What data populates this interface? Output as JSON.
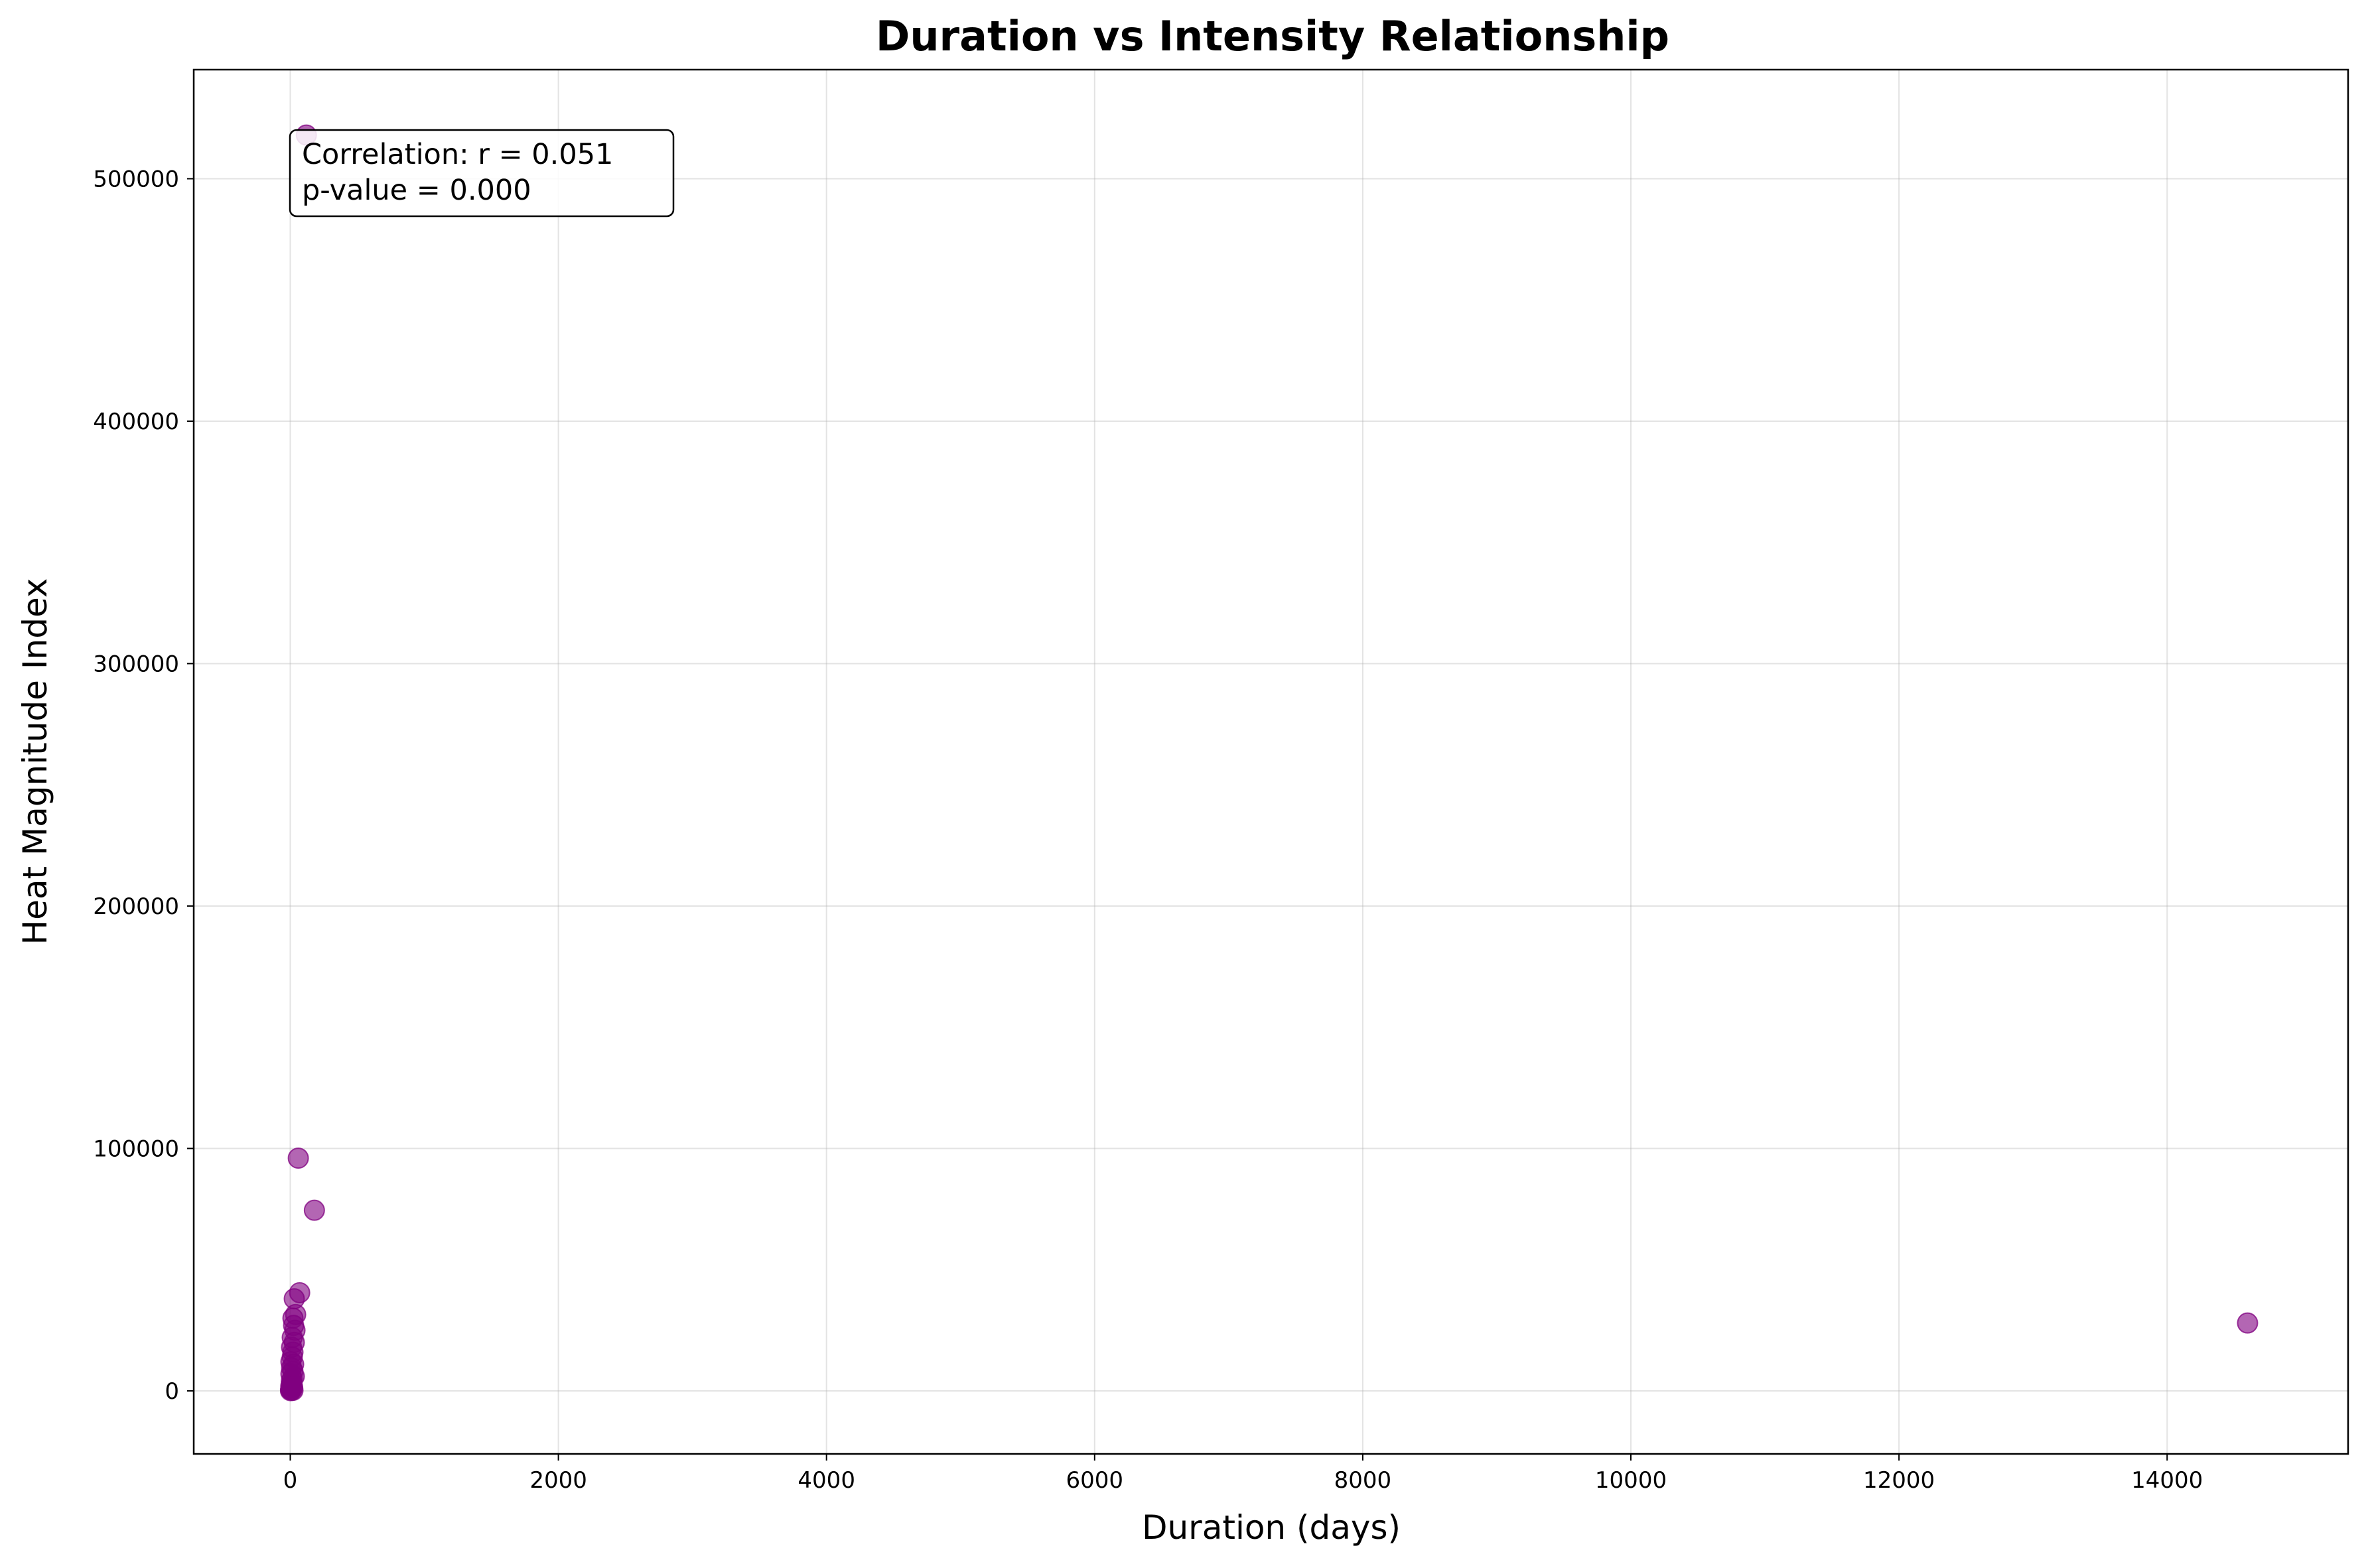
{
  "chart_data": {
    "type": "scatter",
    "title": "Duration vs Intensity Relationship",
    "xlabel": "Duration (days)",
    "ylabel": "Heat Magnitude Index",
    "xlim": [
      -720,
      15350
    ],
    "ylim": [
      -26000,
      545000
    ],
    "xticks": [
      0,
      2000,
      4000,
      6000,
      8000,
      10000,
      12000,
      14000
    ],
    "yticks": [
      0,
      100000,
      200000,
      300000,
      400000,
      500000
    ],
    "grid": true,
    "marker_color": "#800080",
    "marker_alpha": 0.6,
    "annotation": [
      "Correlation: r = 0.051",
      "p-value = 0.000"
    ],
    "points": [
      {
        "x": 120,
        "y": 518000
      },
      {
        "x": 60,
        "y": 96000
      },
      {
        "x": 180,
        "y": 74500
      },
      {
        "x": 70,
        "y": 40500
      },
      {
        "x": 30,
        "y": 38000
      },
      {
        "x": 40,
        "y": 31500
      },
      {
        "x": 20,
        "y": 30000
      },
      {
        "x": 25,
        "y": 27000
      },
      {
        "x": 35,
        "y": 25000
      },
      {
        "x": 15,
        "y": 22000
      },
      {
        "x": 30,
        "y": 20000
      },
      {
        "x": 10,
        "y": 18000
      },
      {
        "x": 20,
        "y": 16000
      },
      {
        "x": 15,
        "y": 14000
      },
      {
        "x": 5,
        "y": 12000
      },
      {
        "x": 25,
        "y": 11000
      },
      {
        "x": 10,
        "y": 9500
      },
      {
        "x": 20,
        "y": 8000
      },
      {
        "x": 5,
        "y": 7000
      },
      {
        "x": 30,
        "y": 6000
      },
      {
        "x": 15,
        "y": 5000
      },
      {
        "x": 8,
        "y": 4000
      },
      {
        "x": 12,
        "y": 3000
      },
      {
        "x": 4,
        "y": 2000
      },
      {
        "x": 18,
        "y": 1500
      },
      {
        "x": 6,
        "y": 1000
      },
      {
        "x": 3,
        "y": 500
      },
      {
        "x": 10,
        "y": 300
      },
      {
        "x": 20,
        "y": 200
      },
      {
        "x": 2,
        "y": 100
      },
      {
        "x": 14600,
        "y": 28000
      }
    ]
  }
}
